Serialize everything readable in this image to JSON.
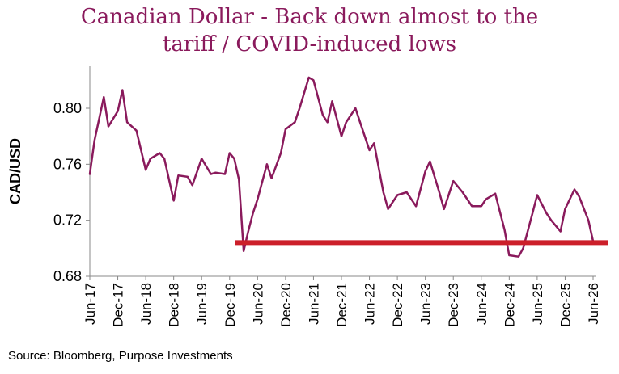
{
  "title_line1": "Canadian Dollar - Back down almost to the",
  "title_line2": "tariff / COVID-induced lows",
  "source": "Source: Bloomberg, Purpose Investments",
  "chart_data": {
    "type": "line",
    "ylabel": "CAD/USD",
    "xlabel": "",
    "ylim": [
      0.68,
      0.83
    ],
    "yticks": [
      0.68,
      0.72,
      0.76,
      0.8
    ],
    "ytick_labels": [
      "0.68",
      "0.72",
      "0.76",
      "0.80"
    ],
    "xticks": [
      "Jun-17",
      "Dec-17",
      "Jun-18",
      "Dec-18",
      "Jun-19",
      "Dec-19",
      "Jun-20",
      "Dec-20",
      "Jun-21",
      "Dec-21",
      "Jun-22",
      "Dec-22",
      "Jun-23",
      "Dec-23",
      "Jun-24",
      "Dec-24",
      "Jun-25",
      "Dec-25",
      "Jun-26"
    ],
    "grid": false,
    "legend": "none",
    "series": [
      {
        "color": "#8a1a5c",
        "x": [
          "Jun-17",
          "Jul-17",
          "Sep-17",
          "Oct-17",
          "Dec-17",
          "Jan-18",
          "Feb-18",
          "Apr-18",
          "Jun-18",
          "Jul-18",
          "Sep-18",
          "Oct-18",
          "Dec-18",
          "Jan-19",
          "Mar-19",
          "Apr-19",
          "Jun-19",
          "Aug-19",
          "Sep-19",
          "Nov-19",
          "Dec-19",
          "Jan-20",
          "Feb-20",
          "Mar-20",
          "Apr-20",
          "May-20",
          "Jun-20",
          "Aug-20",
          "Sep-20",
          "Nov-20",
          "Dec-20",
          "Feb-21",
          "Mar-21",
          "May-21",
          "Jun-21",
          "Aug-21",
          "Sep-21",
          "Oct-21",
          "Dec-21",
          "Jan-22",
          "Mar-22",
          "Apr-22",
          "Jun-22",
          "Jul-22",
          "Sep-22",
          "Oct-22",
          "Dec-22",
          "Feb-23",
          "Apr-23",
          "Jun-23",
          "Jul-23",
          "Sep-23",
          "Oct-23",
          "Dec-23",
          "Feb-24",
          "Apr-24",
          "Jun-24",
          "Jul-24",
          "Sep-24",
          "Nov-24",
          "Dec-24",
          "Feb-25",
          "Mar-25",
          "May-25",
          "Jun-25",
          "Aug-25",
          "Sep-25",
          "Nov-25",
          "Dec-25",
          "Feb-26",
          "Mar-26",
          "May-26",
          "Jun-26"
        ],
        "values": [
          0.753,
          0.777,
          0.808,
          0.787,
          0.798,
          0.813,
          0.79,
          0.784,
          0.756,
          0.764,
          0.768,
          0.764,
          0.734,
          0.752,
          0.751,
          0.745,
          0.764,
          0.753,
          0.754,
          0.753,
          0.768,
          0.764,
          0.749,
          0.698,
          0.712,
          0.725,
          0.735,
          0.76,
          0.75,
          0.768,
          0.785,
          0.79,
          0.8,
          0.822,
          0.82,
          0.795,
          0.79,
          0.805,
          0.78,
          0.79,
          0.8,
          0.79,
          0.77,
          0.775,
          0.74,
          0.728,
          0.738,
          0.74,
          0.73,
          0.755,
          0.762,
          0.74,
          0.728,
          0.748,
          0.74,
          0.73,
          0.73,
          0.735,
          0.739,
          0.713,
          0.695,
          0.694,
          0.7,
          0.725,
          0.738,
          0.725,
          0.72,
          0.712,
          0.728,
          0.742,
          0.737,
          0.72,
          0.705
        ]
      }
    ],
    "reference_line": {
      "value": 0.704,
      "color": "#cc1f2a"
    }
  }
}
